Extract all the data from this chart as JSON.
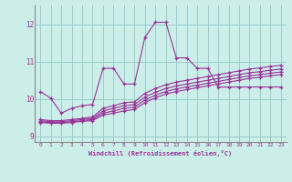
{
  "xlabel": "Windchill (Refroidissement éolien,°C)",
  "xlim": [
    -0.5,
    23.5
  ],
  "ylim": [
    8.85,
    12.5
  ],
  "yticks": [
    9,
    10,
    11,
    12
  ],
  "xticks": [
    0,
    1,
    2,
    3,
    4,
    5,
    6,
    7,
    8,
    9,
    10,
    11,
    12,
    13,
    14,
    15,
    16,
    17,
    18,
    19,
    20,
    21,
    22,
    23
  ],
  "bg_color": "#cceee8",
  "line_color": "#993399",
  "grid_color": "#99cccc",
  "series_spiky": [
    10.2,
    10.02,
    9.62,
    9.75,
    9.82,
    9.85,
    10.82,
    10.82,
    10.4,
    10.4,
    11.65,
    12.05,
    12.05,
    11.1,
    11.1,
    10.82,
    10.82,
    10.32,
    10.32,
    10.32,
    10.32,
    10.32,
    10.32,
    10.32
  ],
  "series_flat": [
    [
      9.45,
      9.42,
      9.42,
      9.45,
      9.48,
      9.52,
      9.75,
      9.82,
      9.9,
      9.92,
      10.15,
      10.28,
      10.38,
      10.45,
      10.5,
      10.55,
      10.6,
      10.65,
      10.7,
      10.75,
      10.8,
      10.83,
      10.87,
      10.9
    ],
    [
      9.42,
      9.39,
      9.39,
      9.42,
      9.45,
      9.48,
      9.68,
      9.75,
      9.82,
      9.85,
      10.05,
      10.18,
      10.28,
      10.35,
      10.4,
      10.45,
      10.5,
      10.55,
      10.6,
      10.65,
      10.7,
      10.73,
      10.77,
      10.8
    ],
    [
      9.39,
      9.37,
      9.37,
      9.39,
      9.42,
      9.45,
      9.62,
      9.68,
      9.75,
      9.78,
      9.97,
      10.1,
      10.2,
      10.27,
      10.32,
      10.37,
      10.42,
      10.47,
      10.52,
      10.57,
      10.62,
      10.65,
      10.69,
      10.72
    ],
    [
      9.37,
      9.35,
      9.35,
      9.37,
      9.4,
      9.42,
      9.57,
      9.62,
      9.68,
      9.72,
      9.9,
      10.03,
      10.13,
      10.2,
      10.25,
      10.3,
      10.35,
      10.4,
      10.45,
      10.5,
      10.55,
      10.58,
      10.62,
      10.65
    ]
  ]
}
